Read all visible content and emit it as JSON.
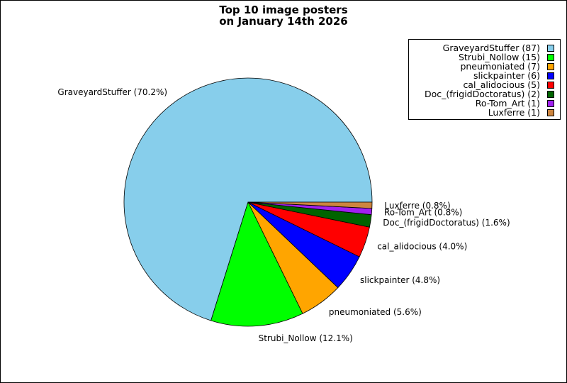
{
  "chart_data": {
    "type": "pie",
    "title_line1": "Top 10 image posters",
    "title_line2": "on January 14th 2026",
    "categories": [
      "GraveyardStuffer",
      "Strubi_Nollow",
      "pneumoniated",
      "slickpainter",
      "cal_alidocious",
      "Doc_(frigidDoctoratus)",
      "Ro-Tom_Art",
      "Luxferre"
    ],
    "values": [
      87,
      15,
      7,
      6,
      5,
      2,
      1,
      1
    ],
    "colors": [
      "#87ceeb",
      "#00ff00",
      "#ffa500",
      "#0000ff",
      "#ff0000",
      "#006400",
      "#a020f0",
      "#cd853f"
    ],
    "slice_labels": [
      "GraveyardStuffer (70.2%)",
      "Strubi_Nollow (12.1%)",
      "pneumoniated (5.6%)",
      "slickpainter (4.8%)",
      "cal_alidocious (4.0%)",
      "Doc_(frigidDoctoratus) (1.6%)",
      "Ro-Tom_Art (0.8%)",
      "Luxferre (0.8%)"
    ],
    "legend_entries": [
      "GraveyardStuffer (87)",
      "Strubi_Nollow (15)",
      "pneumoniated (7)",
      "slickpainter (6)",
      "cal_alidocious (5)",
      "Doc_(frigidDoctoratus) (2)",
      "Ro-Tom_Art (1)",
      "Luxferre (1)"
    ],
    "legend_position": "top-right"
  }
}
